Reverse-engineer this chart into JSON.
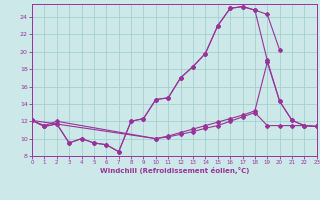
{
  "xlabel": "Windchill (Refroidissement éolien,°C)",
  "bg_color": "#cce8e8",
  "line_color": "#993399",
  "grid_color": "#99cccc",
  "xlim": [
    0,
    23
  ],
  "ylim": [
    8,
    25.5
  ],
  "xticks": [
    0,
    1,
    2,
    3,
    4,
    5,
    6,
    7,
    8,
    9,
    10,
    11,
    12,
    13,
    14,
    15,
    16,
    17,
    18,
    19,
    20,
    21,
    22,
    23
  ],
  "yticks": [
    8,
    10,
    12,
    14,
    16,
    18,
    20,
    22,
    24
  ],
  "curve1_x": [
    0,
    1,
    2,
    3,
    4,
    5,
    6,
    7,
    8,
    9,
    10,
    11,
    12,
    13,
    14,
    15,
    16,
    17,
    18,
    19,
    20
  ],
  "curve1_y": [
    12.1,
    11.4,
    11.7,
    9.5,
    10.0,
    9.5,
    9.3,
    8.5,
    12.0,
    12.3,
    14.5,
    14.7,
    17.0,
    18.3,
    19.8,
    23.0,
    25.0,
    25.2,
    24.8,
    24.3,
    20.2
  ],
  "curve2_x": [
    0,
    1,
    2,
    3,
    4,
    5,
    6,
    7,
    8,
    9,
    10,
    11,
    12,
    13,
    14,
    15,
    16,
    17,
    18,
    19,
    20,
    21,
    22,
    23
  ],
  "curve2_y": [
    12.1,
    11.4,
    11.7,
    9.5,
    10.0,
    9.5,
    9.3,
    8.5,
    12.0,
    12.3,
    14.5,
    14.7,
    17.0,
    18.3,
    19.8,
    23.0,
    25.0,
    25.2,
    24.8,
    19.0,
    14.3,
    12.1,
    11.5,
    11.4
  ],
  "curve3_x": [
    0,
    10,
    11,
    12,
    13,
    14,
    15,
    16,
    17,
    18,
    19,
    20,
    21,
    22,
    23
  ],
  "curve3_y": [
    12.1,
    10.0,
    10.2,
    10.5,
    10.8,
    11.2,
    11.5,
    12.0,
    12.5,
    13.0,
    11.5,
    11.5,
    11.5,
    11.5,
    11.4
  ],
  "curve4_x": [
    0,
    1,
    2,
    10,
    11,
    12,
    13,
    14,
    15,
    16,
    17,
    18,
    19,
    20,
    21,
    22,
    23
  ],
  "curve4_y": [
    12.1,
    11.5,
    12.0,
    10.0,
    10.3,
    10.7,
    11.1,
    11.5,
    11.9,
    12.3,
    12.7,
    13.2,
    18.8,
    14.3,
    12.1,
    11.5,
    11.4
  ]
}
